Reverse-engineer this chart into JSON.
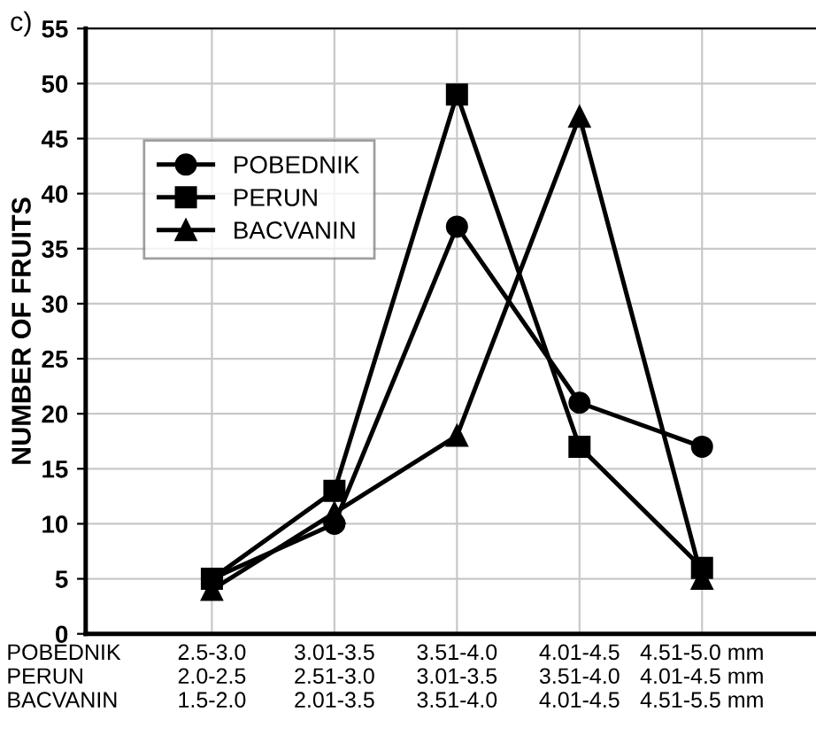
{
  "chart_data": {
    "type": "line",
    "ylabel": "NUMBER OF FRUITS",
    "categories": [
      "2.5-3.0\n2.0-2.5\n1.5-2.0",
      "3.01-3.5\n2.51-3.0\n2.01-3.5",
      "3.51-4.0\n3.01-3.5\n3.51-4.0",
      "4.01-4.5\n3.51-4.0\n4.01-4.5",
      "4.51-5.0 mm\n4.01-4.5 mm\n4.51-5.5 mm"
    ],
    "series": [
      {
        "name": "POBEDNIK",
        "color": "#000000",
        "marker": "circle",
        "values": [
          5,
          10,
          37,
          21,
          17
        ]
      },
      {
        "name": "PERUN",
        "color": "#000000",
        "marker": "square",
        "values": [
          5,
          13,
          49,
          17,
          6
        ]
      },
      {
        "name": "BACVANIN",
        "color": "#000000",
        "marker": "triangle",
        "values": [
          4,
          11,
          18,
          47,
          5
        ]
      }
    ],
    "ylim": [
      0,
      55
    ],
    "yticks": [
      0,
      5,
      10,
      15,
      20,
      25,
      30,
      35,
      40,
      45,
      50,
      55
    ],
    "grid": true,
    "legend": "top left",
    "line_style": "solid",
    "annotations": [
      "c)",
      "POBEDNIK\nPERUN\nBACVANIN"
    ]
  }
}
